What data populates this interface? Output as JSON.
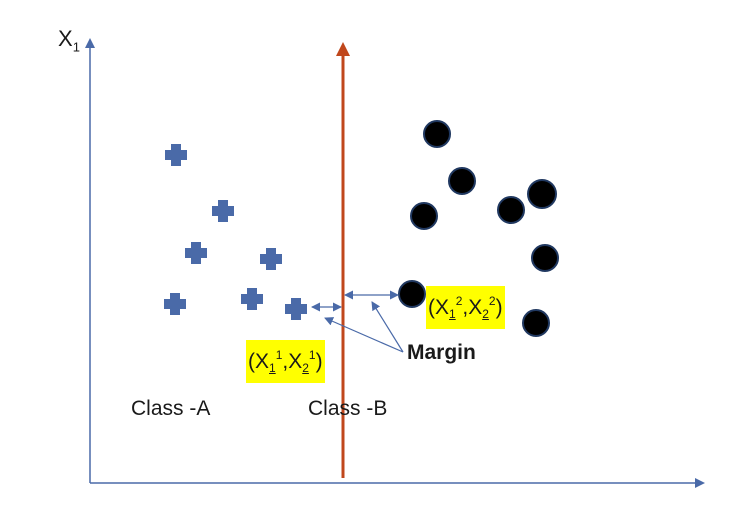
{
  "axis": {
    "y_label": "X",
    "y_label_sub": "1"
  },
  "classes": {
    "a_label": "Class -A",
    "b_label": "Class -B"
  },
  "margin_label": "Margin",
  "support_vector_1": {
    "open": "(X",
    "s1": "1",
    "p1": "1",
    "comma": ",X",
    "s2": "2",
    "p2": "1",
    "close": ")"
  },
  "support_vector_2": {
    "open": "(X",
    "s1": "1",
    "p1": "2",
    "comma": ",X",
    "s2": "2",
    "p2": "2",
    "close": ")"
  },
  "colors": {
    "axis": "#4a6aa8",
    "hyperplane": "#c0471c",
    "class_a_marker": "#4a6aa8",
    "class_b_marker": "#000000",
    "highlight": "#ffff00"
  }
}
